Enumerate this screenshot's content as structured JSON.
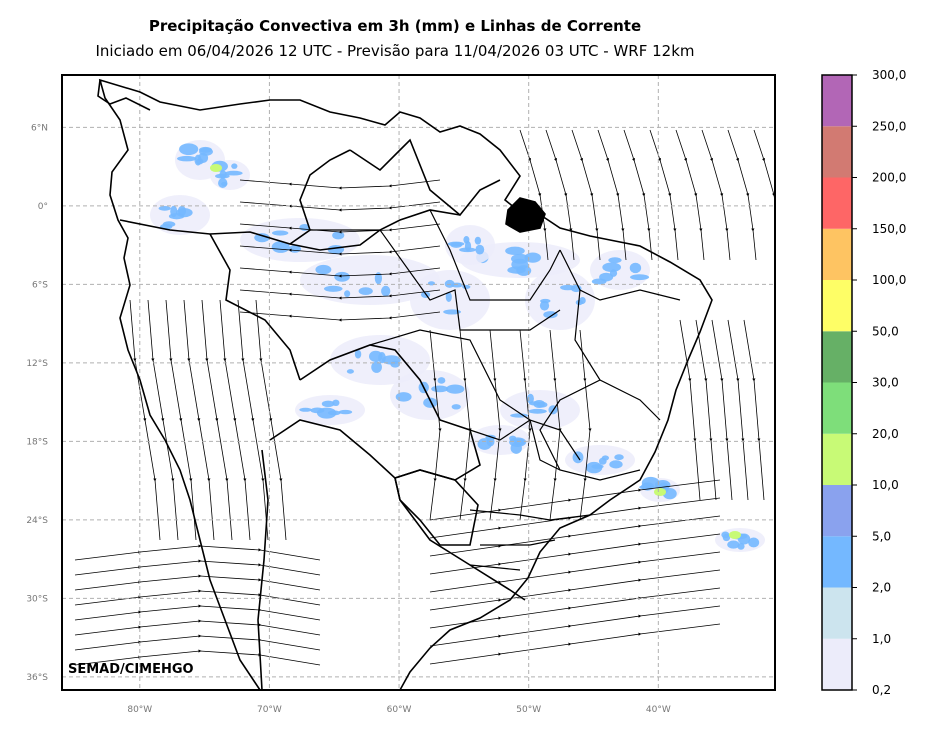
{
  "header": {
    "title": "Precipitação Convectiva em 3h (mm) e Linhas de Corrente",
    "subtitle": "Iniciado em 06/04/2026 12 UTC - Previsão para 11/04/2026 03 UTC - WRF 12km"
  },
  "map": {
    "lon_range": [
      -86,
      -31
    ],
    "lat_range": [
      -37,
      10
    ],
    "lat_ticks": [
      "6°N",
      "0°",
      "6°S",
      "12°S",
      "18°S",
      "24°S",
      "30°S",
      "36°S"
    ],
    "lon_ticks": [
      "80°W",
      "70°W",
      "60°W",
      "50°W",
      "40°W"
    ],
    "gridlines": true,
    "credit": "SEMAD/CIMEHGO"
  },
  "colorbar": {
    "labels": [
      "0,2",
      "1,0",
      "2,0",
      "5,0",
      "10,0",
      "20,0",
      "30,0",
      "50,0",
      "100,0",
      "150,0",
      "200,0",
      "250,0",
      "300,0"
    ],
    "colors": [
      "#ececfa",
      "#cce4ee",
      "#74b8ff",
      "#8aa2ee",
      "#c8fa76",
      "#7ede7a",
      "#66b066",
      "#fefe66",
      "#fec462",
      "#fe6666",
      "#d27a72",
      "#b266b6"
    ]
  }
}
